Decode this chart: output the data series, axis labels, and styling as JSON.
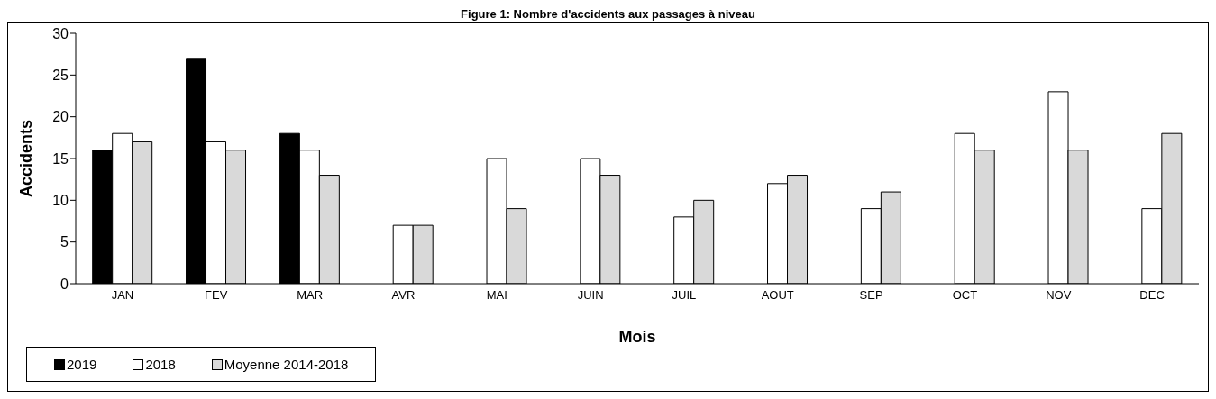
{
  "chart_data": {
    "type": "bar",
    "title": "Figure 1: Nombre d'accidents aux passages à niveau",
    "xlabel": "Mois",
    "ylabel": "Accidents",
    "categories": [
      "JAN",
      "FEV",
      "MAR",
      "AVR",
      "MAI",
      "JUIN",
      "JUIL",
      "AOUT",
      "SEP",
      "OCT",
      "NOV",
      "DEC"
    ],
    "series": [
      {
        "name": "2019",
        "color": "#000000",
        "values": [
          16,
          27,
          18,
          null,
          null,
          null,
          null,
          null,
          null,
          null,
          null,
          null
        ]
      },
      {
        "name": "2018",
        "color": "#ffffff",
        "values": [
          18,
          17,
          16,
          7,
          15,
          15,
          8,
          12,
          9,
          18,
          23,
          9
        ]
      },
      {
        "name": "Moyenne 2014-2018",
        "color": "#d9d9d9",
        "values": [
          17,
          16,
          13,
          7,
          9,
          13,
          10,
          13,
          11,
          16,
          16,
          18
        ]
      }
    ],
    "ylim": [
      0,
      30
    ],
    "yticks": [
      0,
      5,
      10,
      15,
      20,
      25,
      30
    ],
    "grid": false,
    "legend": "bottom"
  }
}
